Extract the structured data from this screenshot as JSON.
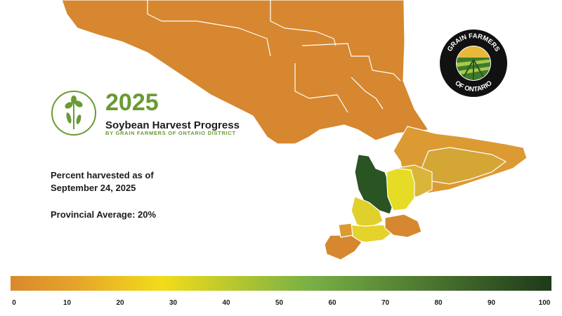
{
  "header": {
    "year": "2025",
    "subtitle": "Soybean Harvest Progress",
    "byline": "BY GRAIN FARMERS OF ONTARIO DISTRICT"
  },
  "info": {
    "as_of": "Percent harvested as of September 24, 2025",
    "provincial_average": "Provincial Average: 20%"
  },
  "logo": {
    "text_top": "GRAIN FARMERS",
    "text_bottom": "OF ONTARIO"
  },
  "legend": {
    "ticks": [
      "0",
      "10",
      "20",
      "30",
      "40",
      "50",
      "60",
      "70",
      "80",
      "90",
      "100"
    ],
    "colors": [
      "#d9892e",
      "#e6a42b",
      "#f2dc1a",
      "#79b145",
      "#1e3a1a"
    ]
  },
  "map_colors": {
    "north": "#d6872f",
    "lake_divider": "#ffffff",
    "high": "#2a5423",
    "yellow": "#e7dc25",
    "mid": "#d2b13a",
    "orange_mid": "#dc9a33"
  }
}
